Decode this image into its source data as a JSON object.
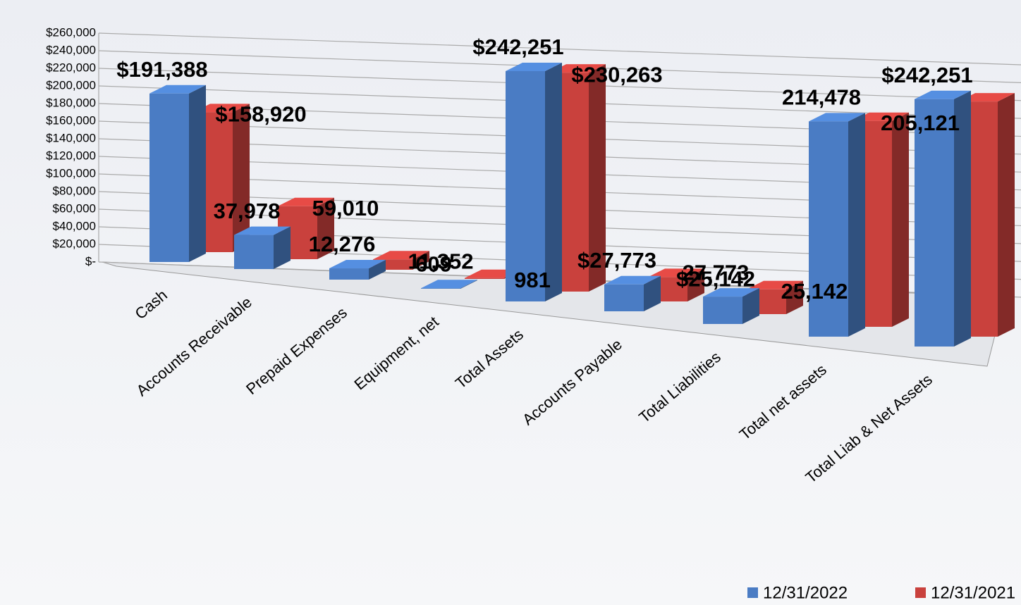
{
  "chart_data": {
    "type": "bar3d",
    "categories": [
      "Cash",
      "Accounts Receivable",
      "Prepaid Expenses",
      "Equipment, net",
      "Total Assets",
      "Accounts Payable",
      "Total Liabilities",
      "Total net assets",
      "Total Liab & Net Assets"
    ],
    "series": [
      {
        "name": "12/31/2022",
        "color": "#4a7cc4",
        "values": [
          191388,
          37978,
          12276,
          609,
          242251,
          27773,
          27773,
          214478,
          242251
        ],
        "value_labels": [
          "$191,388",
          "37,978",
          "12,276",
          "609",
          "$242,251",
          "$27,773",
          "27,773",
          "214,478",
          "$242,251"
        ]
      },
      {
        "name": "12/31/2021",
        "color": "#c9413d",
        "values": [
          158920,
          59010,
          11352,
          981,
          230263,
          25142,
          25142,
          205121,
          230263
        ],
        "value_labels": [
          "$158,920",
          "59,010",
          "11,352",
          "981",
          "$230,263",
          "$25,142",
          "25,142",
          "205,121",
          null
        ]
      }
    ],
    "ylim": [
      0,
      260000
    ],
    "yticks": [
      {
        "value": 0,
        "label": "$-"
      },
      {
        "value": 20000,
        "label": "$20,000"
      },
      {
        "value": 40000,
        "label": "$40,000"
      },
      {
        "value": 60000,
        "label": "$60,000"
      },
      {
        "value": 80000,
        "label": "$80,000"
      },
      {
        "value": 100000,
        "label": "$100,000"
      },
      {
        "value": 120000,
        "label": "$120,000"
      },
      {
        "value": 140000,
        "label": "$140,000"
      },
      {
        "value": 160000,
        "label": "$160,000"
      },
      {
        "value": 180000,
        "label": "$180,000"
      },
      {
        "value": 200000,
        "label": "$200,000"
      },
      {
        "value": 220000,
        "label": "$220,000"
      },
      {
        "value": 240000,
        "label": "$240,000"
      },
      {
        "value": 260000,
        "label": "$260,000"
      }
    ],
    "grid": true
  }
}
